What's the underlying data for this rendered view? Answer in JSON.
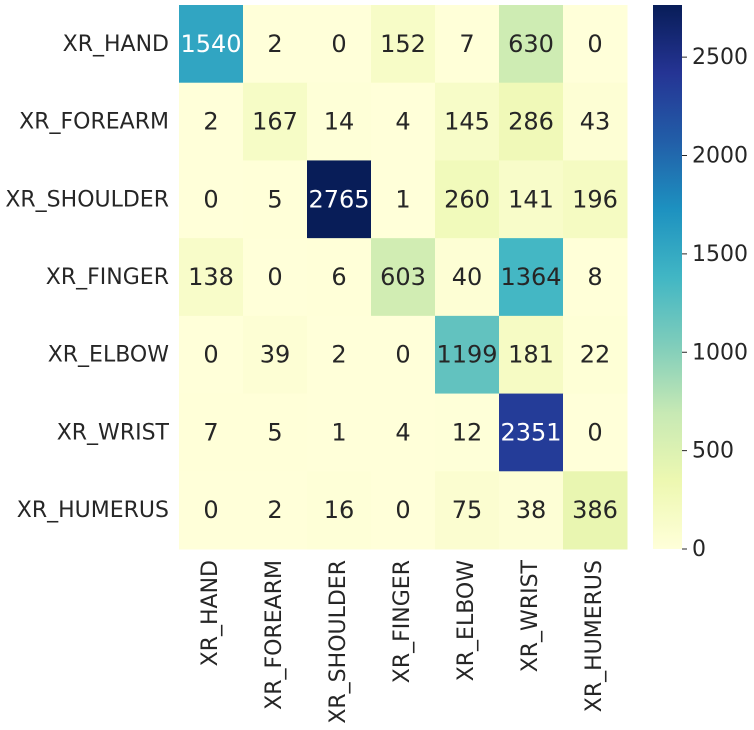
{
  "chart_data": {
    "type": "heatmap",
    "rows": [
      "XR_HAND",
      "XR_FOREARM",
      "XR_SHOULDER",
      "XR_FINGER",
      "XR_ELBOW",
      "XR_WRIST",
      "XR_HUMERUS"
    ],
    "columns": [
      "XR_HAND",
      "XR_FOREARM",
      "XR_SHOULDER",
      "XR_FINGER",
      "XR_ELBOW",
      "XR_WRIST",
      "XR_HUMERUS"
    ],
    "values": [
      [
        1540,
        2,
        0,
        152,
        7,
        630,
        0
      ],
      [
        2,
        167,
        14,
        4,
        145,
        286,
        43
      ],
      [
        0,
        5,
        2765,
        1,
        260,
        141,
        196
      ],
      [
        138,
        0,
        6,
        603,
        40,
        1364,
        8
      ],
      [
        0,
        39,
        2,
        0,
        1199,
        181,
        22
      ],
      [
        7,
        5,
        1,
        4,
        12,
        2351,
        0
      ],
      [
        0,
        2,
        16,
        0,
        75,
        38,
        386
      ]
    ],
    "colormap": "YlGnBu",
    "vmin": 0,
    "vmax": 2765,
    "colorbar_ticks": [
      0,
      500,
      1000,
      1500,
      2000,
      2500
    ],
    "title": "",
    "xlabel": "",
    "ylabel": ""
  }
}
